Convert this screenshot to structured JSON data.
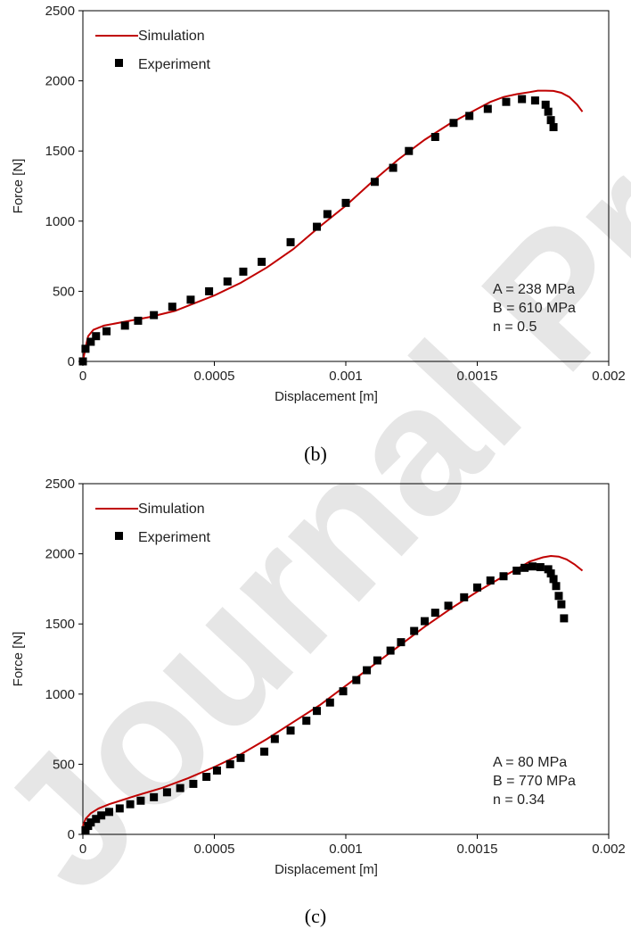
{
  "watermark": {
    "text": "Journal Pre-proof",
    "color": "#e6e6e6"
  },
  "colors": {
    "simulation": "#c00000",
    "experiment": "#000000",
    "axis": "#000000"
  },
  "chart_data": [
    {
      "type": "line",
      "caption": "(b)",
      "xlabel": "Displacement [m]",
      "ylabel": "Force [N]",
      "xlim": [
        0,
        0.002
      ],
      "ylim": [
        0,
        2500
      ],
      "xticks": [
        {
          "value": 0,
          "label": "0"
        },
        {
          "value": 0.0005,
          "label": "0.0005"
        },
        {
          "value": 0.001,
          "label": "0.001"
        },
        {
          "value": 0.0015,
          "label": "0.0015"
        },
        {
          "value": 0.002,
          "label": "0.002"
        }
      ],
      "yticks": [
        {
          "value": 0,
          "label": "0"
        },
        {
          "value": 500,
          "label": "500"
        },
        {
          "value": 1000,
          "label": "1000"
        },
        {
          "value": 1500,
          "label": "1500"
        },
        {
          "value": 2000,
          "label": "2000"
        },
        {
          "value": 2500,
          "label": "2500"
        }
      ],
      "grid": false,
      "legend_position": "top-left",
      "annotations": [
        "A = 238 MPa",
        "B = 610 MPa",
        "n = 0.5"
      ],
      "series": [
        {
          "name": "Simulation",
          "kind": "line",
          "x": [
            0,
            1e-05,
            2e-05,
            4e-05,
            8e-05,
            0.00015,
            0.00025,
            0.00035,
            0.0005,
            0.0006,
            0.0007,
            0.0008,
            0.0009,
            0.001,
            0.0011,
            0.0012,
            0.0013,
            0.0014,
            0.0015,
            0.00155,
            0.0016,
            0.00165,
            0.0017,
            0.00173,
            0.00176,
            0.00179,
            0.00182,
            0.00185,
            0.00188,
            0.0019
          ],
          "y": [
            0,
            100,
            180,
            225,
            255,
            280,
            315,
            360,
            470,
            560,
            670,
            800,
            960,
            1110,
            1280,
            1440,
            1580,
            1700,
            1800,
            1850,
            1885,
            1905,
            1920,
            1930,
            1930,
            1928,
            1915,
            1885,
            1830,
            1780
          ]
        },
        {
          "name": "Experiment",
          "kind": "scatter",
          "x": [
            0,
            1e-05,
            3e-05,
            5e-05,
            9e-05,
            0.00016,
            0.00021,
            0.00027,
            0.00034,
            0.00041,
            0.00048,
            0.00055,
            0.00061,
            0.00068,
            0.00079,
            0.00089,
            0.00093,
            0.001,
            0.00111,
            0.00118,
            0.00124,
            0.00134,
            0.00141,
            0.00147,
            0.00154,
            0.00161,
            0.00167,
            0.00172,
            0.00176,
            0.00177,
            0.00178,
            0.00179
          ],
          "y": [
            0,
            90,
            140,
            180,
            215,
            255,
            290,
            330,
            390,
            440,
            500,
            570,
            640,
            710,
            850,
            960,
            1050,
            1130,
            1280,
            1380,
            1500,
            1600,
            1700,
            1750,
            1800,
            1850,
            1870,
            1860,
            1830,
            1780,
            1720,
            1670
          ]
        }
      ]
    },
    {
      "type": "line",
      "caption": "(c)",
      "xlabel": "Displacement [m]",
      "ylabel": "Force [N]",
      "xlim": [
        0,
        0.002
      ],
      "ylim": [
        0,
        2500
      ],
      "xticks": [
        {
          "value": 0,
          "label": "0"
        },
        {
          "value": 0.0005,
          "label": "0.0005"
        },
        {
          "value": 0.001,
          "label": "0.001"
        },
        {
          "value": 0.0015,
          "label": "0.0015"
        },
        {
          "value": 0.002,
          "label": "0.002"
        }
      ],
      "yticks": [
        {
          "value": 0,
          "label": "0"
        },
        {
          "value": 500,
          "label": "500"
        },
        {
          "value": 1000,
          "label": "1000"
        },
        {
          "value": 1500,
          "label": "1500"
        },
        {
          "value": 2000,
          "label": "2000"
        },
        {
          "value": 2500,
          "label": "2500"
        }
      ],
      "grid": false,
      "legend_position": "top-left",
      "annotations": [
        "A = 80 MPa",
        "B = 770 MPa",
        "n = 0.34"
      ],
      "series": [
        {
          "name": "Simulation",
          "kind": "line",
          "x": [
            0,
            1e-05,
            3e-05,
            6e-05,
            0.0001,
            0.00015,
            0.0002,
            0.0003,
            0.0004,
            0.0005,
            0.0006,
            0.0007,
            0.0008,
            0.0009,
            0.001,
            0.0011,
            0.0012,
            0.0013,
            0.0014,
            0.0015,
            0.0016,
            0.00165,
            0.0017,
            0.00175,
            0.00178,
            0.00181,
            0.00184,
            0.00187,
            0.0019
          ],
          "y": [
            60,
            110,
            150,
            185,
            215,
            245,
            275,
            330,
            400,
            480,
            570,
            680,
            800,
            920,
            1060,
            1200,
            1340,
            1480,
            1610,
            1730,
            1840,
            1890,
            1945,
            1975,
            1985,
            1980,
            1960,
            1925,
            1880
          ]
        },
        {
          "name": "Experiment",
          "kind": "scatter",
          "x": [
            1e-05,
            2e-05,
            3e-05,
            5e-05,
            7e-05,
            0.0001,
            0.00014,
            0.00018,
            0.00022,
            0.00027,
            0.00032,
            0.00037,
            0.00042,
            0.00047,
            0.00051,
            0.00056,
            0.0006,
            0.00069,
            0.00073,
            0.00079,
            0.00085,
            0.00089,
            0.00094,
            0.00099,
            0.00104,
            0.00108,
            0.00112,
            0.00117,
            0.00121,
            0.00126,
            0.0013,
            0.00134,
            0.00139,
            0.00145,
            0.0015,
            0.00155,
            0.0016,
            0.00165,
            0.00168,
            0.00171,
            0.00174,
            0.00177,
            0.00178,
            0.00179,
            0.0018,
            0.00181,
            0.00182,
            0.00183
          ],
          "y": [
            30,
            60,
            85,
            110,
            135,
            160,
            185,
            215,
            240,
            265,
            300,
            330,
            360,
            410,
            455,
            500,
            545,
            590,
            680,
            740,
            810,
            880,
            940,
            1020,
            1100,
            1170,
            1240,
            1310,
            1370,
            1450,
            1520,
            1580,
            1630,
            1690,
            1760,
            1810,
            1840,
            1880,
            1900,
            1910,
            1905,
            1890,
            1860,
            1820,
            1770,
            1700,
            1640,
            1540
          ]
        }
      ]
    }
  ]
}
